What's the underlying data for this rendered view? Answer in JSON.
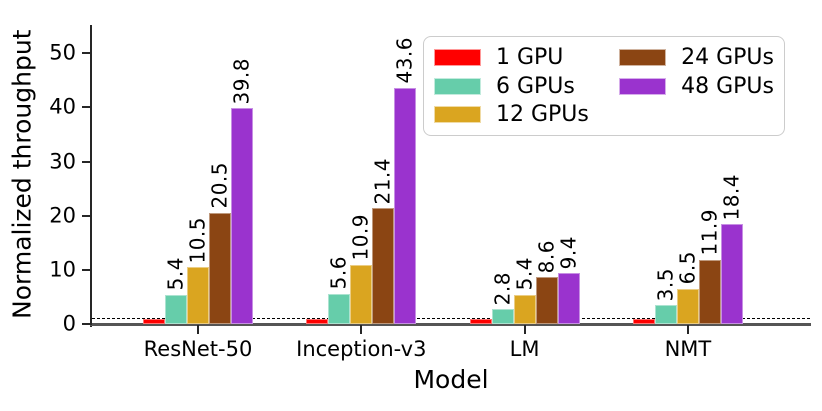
{
  "chart_data": {
    "type": "bar",
    "title": "",
    "xlabel": "Model",
    "ylabel": "Normalized throughput",
    "categories": [
      "ResNet-50",
      "Inception-v3",
      "LM",
      "NMT"
    ],
    "series": [
      {
        "name": "1 GPU",
        "color": "#ff0000",
        "values": [
          1,
          1,
          1,
          1
        ],
        "bar_labels": null
      },
      {
        "name": "6 GPUs",
        "color": "#66cdaa",
        "values": [
          5.4,
          5.6,
          2.8,
          3.5
        ],
        "bar_labels": [
          "5.4",
          "5.6",
          "2.8",
          "3.5"
        ]
      },
      {
        "name": "12 GPUs",
        "color": "#daa520",
        "values": [
          10.5,
          10.9,
          5.4,
          6.5
        ],
        "bar_labels": [
          "10.5",
          "10.9",
          "5.4",
          "6.5"
        ]
      },
      {
        "name": "24 GPUs",
        "color": "#8b4513",
        "values": [
          20.5,
          21.4,
          8.6,
          11.9
        ],
        "bar_labels": [
          "20.5",
          "21.4",
          "8.6",
          "11.9"
        ]
      },
      {
        "name": "48 GPUs",
        "color": "#9a33ce",
        "values": [
          39.8,
          43.6,
          9.4,
          18.4
        ],
        "bar_labels": [
          "39.8",
          "43.6",
          "9.4",
          "18.4"
        ]
      }
    ],
    "yticks": [
      0,
      10,
      20,
      30,
      40,
      50
    ],
    "ylim": [
      0,
      55.2
    ],
    "reference_line": {
      "value": 1,
      "style": "dashed",
      "color": "#000000"
    },
    "legend": {
      "position": "upper right",
      "columns": 2,
      "rows_per_column": [
        3,
        2
      ]
    },
    "grid": false
  },
  "colors": {
    "background": "#ffffff",
    "spine_left": "#262626",
    "spine_bottom": "#555555",
    "text": "#000000",
    "legend_border": "#cccccc"
  }
}
